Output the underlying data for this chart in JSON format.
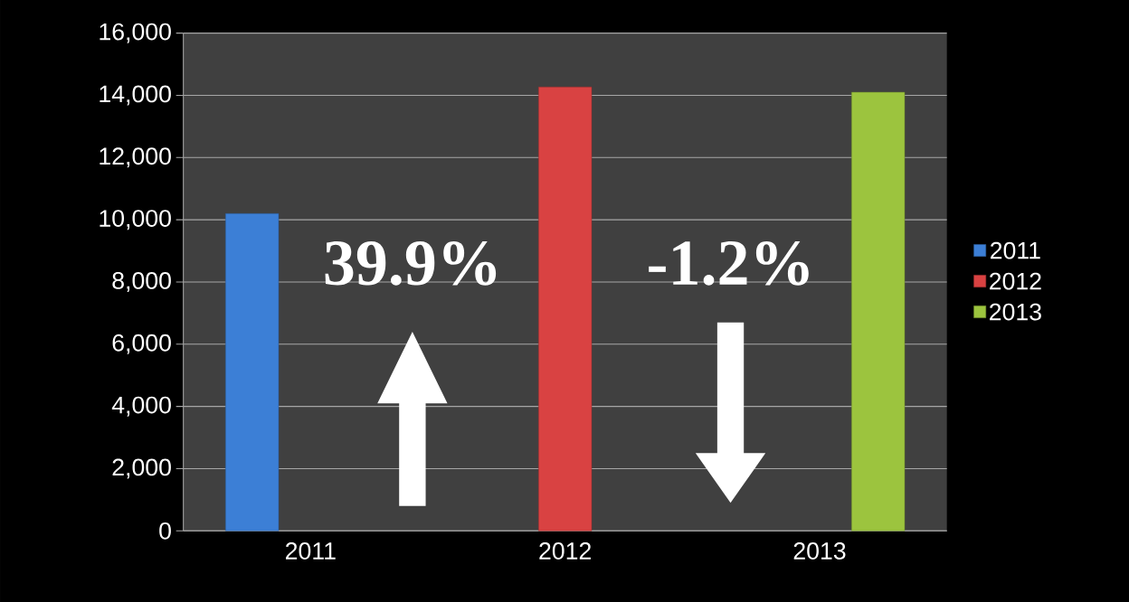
{
  "chart_data": {
    "type": "bar",
    "categories": [
      "2011",
      "2012",
      "2013"
    ],
    "series": [
      {
        "name": "2011",
        "color": "#3c7fd6",
        "values": [
          10200,
          null,
          null
        ]
      },
      {
        "name": "2012",
        "color": "#d94242",
        "values": [
          null,
          14270,
          null
        ]
      },
      {
        "name": "2013",
        "color": "#9cc43e",
        "values": [
          null,
          null,
          14100
        ]
      }
    ],
    "ylim": [
      0,
      16000
    ],
    "yticks": [
      0,
      {
        "value": 2000,
        "label": "2,000"
      },
      {
        "value": 4000,
        "label": "4,000"
      },
      {
        "value": 6000,
        "label": "6,000"
      },
      {
        "value": 8000,
        "label": "8,000"
      },
      {
        "value": 10000,
        "label": "10,000"
      },
      {
        "value": 12000,
        "label": "12,000"
      },
      {
        "value": 14000,
        "label": "14,000"
      },
      {
        "value": 16000,
        "label": "16,000"
      }
    ],
    "grid": "y",
    "legend": "right",
    "annotations": [
      "39.9%",
      "-1.2%"
    ]
  }
}
